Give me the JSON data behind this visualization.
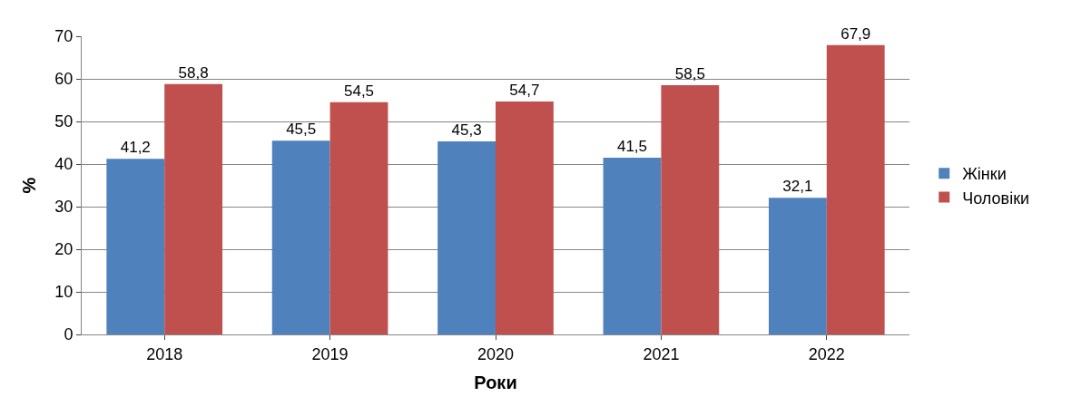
{
  "chart_data": {
    "type": "bar",
    "xlabel": "Роки",
    "ylabel": "%",
    "categories": [
      "2018",
      "2019",
      "2020",
      "2021",
      "2022"
    ],
    "series": [
      {
        "name": "Жінки",
        "color": "#4f81bd",
        "values": [
          41.2,
          45.5,
          45.3,
          41.5,
          32.1
        ],
        "value_labels": [
          "41,2",
          "45,5",
          "45,3",
          "41,5",
          "32,1"
        ]
      },
      {
        "name": "Чоловіки",
        "color": "#c0504d",
        "values": [
          58.8,
          54.5,
          54.7,
          58.5,
          67.9
        ],
        "value_labels": [
          "58,8",
          "54,5",
          "54,7",
          "58,5",
          "67,9"
        ]
      }
    ],
    "ylim": [
      0,
      70
    ],
    "yticks": [
      0,
      10,
      20,
      30,
      40,
      50,
      60,
      70
    ],
    "grid": "y",
    "legend": "right"
  }
}
